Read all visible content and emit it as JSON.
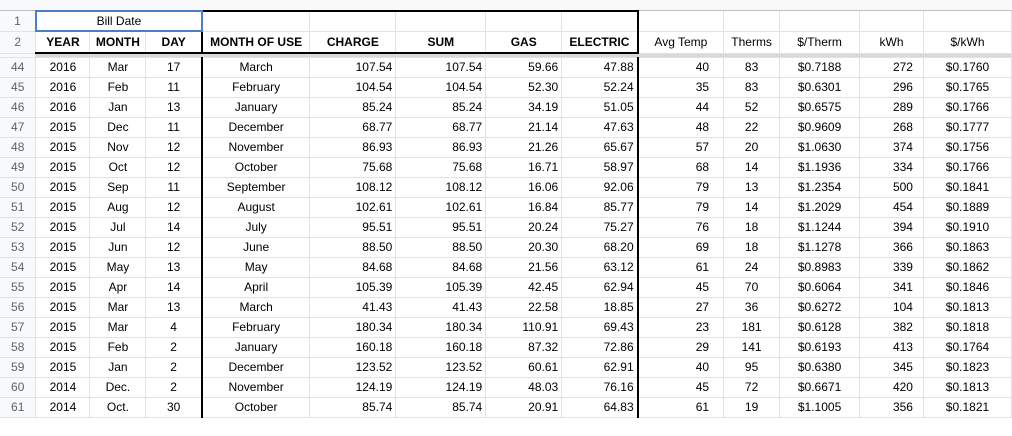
{
  "sheet": {
    "bill_date_label": "Bill Date",
    "headers": {
      "year": "YEAR",
      "month": "MONTH",
      "day": "DAY",
      "month_of_use": "MONTH OF USE",
      "charge": "CHARGE",
      "sum": "SUM",
      "gas": "GAS",
      "electric": "ELECTRIC",
      "avg_temp": "Avg Temp",
      "therms": "Therms",
      "per_therm": "$/Therm",
      "kwh": "kWh",
      "per_kwh": "$/kWh"
    },
    "rows": [
      {
        "n": "44",
        "year": "2016",
        "month": "Mar",
        "day": "17",
        "mou": "March",
        "charge": "107.54",
        "sum": "107.54",
        "gas": "59.66",
        "electric": "47.88",
        "temp": "40",
        "therms": "83",
        "pt": "$0.7188",
        "kwh": "272",
        "pk": "$0.1760"
      },
      {
        "n": "45",
        "year": "2016",
        "month": "Feb",
        "day": "11",
        "mou": "February",
        "charge": "104.54",
        "sum": "104.54",
        "gas": "52.30",
        "electric": "52.24",
        "temp": "35",
        "therms": "83",
        "pt": "$0.6301",
        "kwh": "296",
        "pk": "$0.1765"
      },
      {
        "n": "46",
        "year": "2016",
        "month": "Jan",
        "day": "13",
        "mou": "January",
        "charge": "85.24",
        "sum": "85.24",
        "gas": "34.19",
        "electric": "51.05",
        "temp": "44",
        "therms": "52",
        "pt": "$0.6575",
        "kwh": "289",
        "pk": "$0.1766"
      },
      {
        "n": "47",
        "year": "2015",
        "month": "Dec",
        "day": "11",
        "mou": "December",
        "charge": "68.77",
        "sum": "68.77",
        "gas": "21.14",
        "electric": "47.63",
        "temp": "48",
        "therms": "22",
        "pt": "$0.9609",
        "kwh": "268",
        "pk": "$0.1777"
      },
      {
        "n": "48",
        "year": "2015",
        "month": "Nov",
        "day": "12",
        "mou": "November",
        "charge": "86.93",
        "sum": "86.93",
        "gas": "21.26",
        "electric": "65.67",
        "temp": "57",
        "therms": "20",
        "pt": "$1.0630",
        "kwh": "374",
        "pk": "$0.1756"
      },
      {
        "n": "49",
        "year": "2015",
        "month": "Oct",
        "day": "12",
        "mou": "October",
        "charge": "75.68",
        "sum": "75.68",
        "gas": "16.71",
        "electric": "58.97",
        "temp": "68",
        "therms": "14",
        "pt": "$1.1936",
        "kwh": "334",
        "pk": "$0.1766"
      },
      {
        "n": "50",
        "year": "2015",
        "month": "Sep",
        "day": "11",
        "mou": "September",
        "charge": "108.12",
        "sum": "108.12",
        "gas": "16.06",
        "electric": "92.06",
        "temp": "79",
        "therms": "13",
        "pt": "$1.2354",
        "kwh": "500",
        "pk": "$0.1841"
      },
      {
        "n": "51",
        "year": "2015",
        "month": "Aug",
        "day": "12",
        "mou": "August",
        "charge": "102.61",
        "sum": "102.61",
        "gas": "16.84",
        "electric": "85.77",
        "temp": "79",
        "therms": "14",
        "pt": "$1.2029",
        "kwh": "454",
        "pk": "$0.1889"
      },
      {
        "n": "52",
        "year": "2015",
        "month": "Jul",
        "day": "14",
        "mou": "July",
        "charge": "95.51",
        "sum": "95.51",
        "gas": "20.24",
        "electric": "75.27",
        "temp": "76",
        "therms": "18",
        "pt": "$1.1244",
        "kwh": "394",
        "pk": "$0.1910"
      },
      {
        "n": "53",
        "year": "2015",
        "month": "Jun",
        "day": "12",
        "mou": "June",
        "charge": "88.50",
        "sum": "88.50",
        "gas": "20.30",
        "electric": "68.20",
        "temp": "69",
        "therms": "18",
        "pt": "$1.1278",
        "kwh": "366",
        "pk": "$0.1863"
      },
      {
        "n": "54",
        "year": "2015",
        "month": "May",
        "day": "13",
        "mou": "May",
        "charge": "84.68",
        "sum": "84.68",
        "gas": "21.56",
        "electric": "63.12",
        "temp": "61",
        "therms": "24",
        "pt": "$0.8983",
        "kwh": "339",
        "pk": "$0.1862"
      },
      {
        "n": "55",
        "year": "2015",
        "month": "Apr",
        "day": "14",
        "mou": "April",
        "charge": "105.39",
        "sum": "105.39",
        "gas": "42.45",
        "electric": "62.94",
        "temp": "45",
        "therms": "70",
        "pt": "$0.6064",
        "kwh": "341",
        "pk": "$0.1846"
      },
      {
        "n": "56",
        "year": "2015",
        "month": "Mar",
        "day": "13",
        "mou": "March",
        "charge": "41.43",
        "sum": "41.43",
        "gas": "22.58",
        "electric": "18.85",
        "temp": "27",
        "therms": "36",
        "pt": "$0.6272",
        "kwh": "104",
        "pk": "$0.1813"
      },
      {
        "n": "57",
        "year": "2015",
        "month": "Mar",
        "day": "4",
        "mou": "February",
        "charge": "180.34",
        "sum": "180.34",
        "gas": "110.91",
        "electric": "69.43",
        "temp": "23",
        "therms": "181",
        "pt": "$0.6128",
        "kwh": "382",
        "pk": "$0.1818"
      },
      {
        "n": "58",
        "year": "2015",
        "month": "Feb",
        "day": "2",
        "mou": "January",
        "charge": "160.18",
        "sum": "160.18",
        "gas": "87.32",
        "electric": "72.86",
        "temp": "29",
        "therms": "141",
        "pt": "$0.6193",
        "kwh": "413",
        "pk": "$0.1764"
      },
      {
        "n": "59",
        "year": "2015",
        "month": "Jan",
        "day": "2",
        "mou": "December",
        "charge": "123.52",
        "sum": "123.52",
        "gas": "60.61",
        "electric": "62.91",
        "temp": "40",
        "therms": "95",
        "pt": "$0.6380",
        "kwh": "345",
        "pk": "$0.1823"
      },
      {
        "n": "60",
        "year": "2014",
        "month": "Dec.",
        "day": "2",
        "mou": "November",
        "charge": "124.19",
        "sum": "124.19",
        "gas": "48.03",
        "electric": "76.16",
        "temp": "45",
        "therms": "72",
        "pt": "$0.6671",
        "kwh": "420",
        "pk": "$0.1813"
      },
      {
        "n": "61",
        "year": "2014",
        "month": "Oct.",
        "day": "30",
        "mou": "October",
        "charge": "85.74",
        "sum": "85.74",
        "gas": "20.91",
        "electric": "64.83",
        "temp": "61",
        "therms": "19",
        "pt": "$1.1005",
        "kwh": "356",
        "pk": "$0.1821"
      }
    ]
  }
}
